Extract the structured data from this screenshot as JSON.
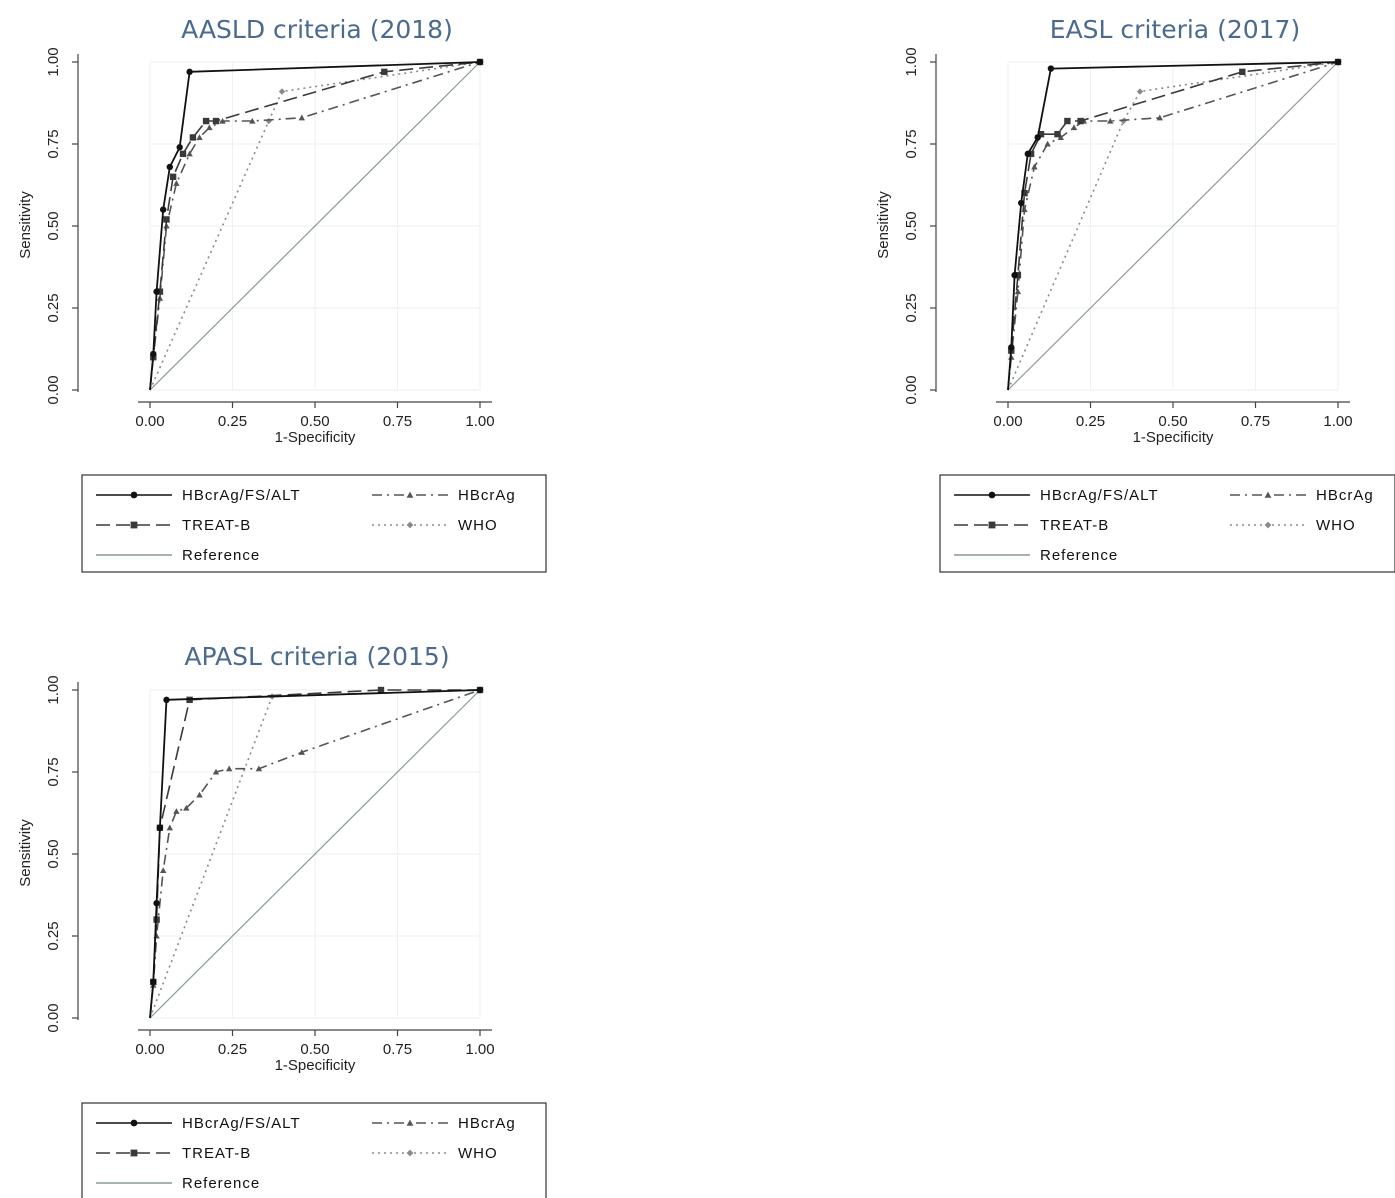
{
  "chart_data": [
    {
      "type": "line",
      "title": "AASLD criteria (2018)",
      "xlabel": "1-Specificity",
      "ylabel": "Sensitivity",
      "xlim": [
        0,
        1
      ],
      "ylim": [
        0,
        1
      ],
      "xticks": [
        "0.00",
        "0.25",
        "0.50",
        "0.75",
        "1.00"
      ],
      "yticks": [
        "0.00",
        "0.25",
        "0.50",
        "0.75",
        "1.00"
      ],
      "grid": true,
      "legend_position": "bottom",
      "series": [
        {
          "name": "HBcrAg/FS/ALT",
          "style": "solid",
          "color": "#111111",
          "x": [
            0,
            0.01,
            0.02,
            0.04,
            0.06,
            0.09,
            0.12,
            1.0
          ],
          "y": [
            0,
            0.11,
            0.3,
            0.55,
            0.68,
            0.74,
            0.97,
            1.0
          ]
        },
        {
          "name": "TREAT-B",
          "style": "dashed",
          "color": "#3a3a3a",
          "x": [
            0,
            0.01,
            0.03,
            0.05,
            0.07,
            0.1,
            0.13,
            0.17,
            0.2,
            0.71,
            1.0
          ],
          "y": [
            0,
            0.1,
            0.3,
            0.52,
            0.65,
            0.72,
            0.77,
            0.82,
            0.82,
            0.97,
            1.0
          ]
        },
        {
          "name": "HBcrAg",
          "style": "dashdot",
          "color": "#555555",
          "x": [
            0,
            0.01,
            0.03,
            0.05,
            0.08,
            0.12,
            0.15,
            0.18,
            0.22,
            0.31,
            0.46,
            1.0
          ],
          "y": [
            0,
            0.1,
            0.28,
            0.5,
            0.63,
            0.72,
            0.77,
            0.8,
            0.82,
            0.82,
            0.83,
            1.0
          ]
        },
        {
          "name": "WHO",
          "style": "dotted",
          "color": "#8a8a8a",
          "x": [
            0,
            0.36,
            0.4,
            1.0
          ],
          "y": [
            0,
            0.82,
            0.91,
            1.0
          ]
        },
        {
          "name": "Reference",
          "style": "solid",
          "color": "#8a9a9a",
          "x": [
            0,
            1
          ],
          "y": [
            0,
            1
          ]
        }
      ]
    },
    {
      "type": "line",
      "title": "EASL criteria (2017)",
      "xlabel": "1-Specificity",
      "ylabel": "Sensitivity",
      "xlim": [
        0,
        1
      ],
      "ylim": [
        0,
        1
      ],
      "xticks": [
        "0.00",
        "0.25",
        "0.50",
        "0.75",
        "1.00"
      ],
      "yticks": [
        "0.00",
        "0.25",
        "0.50",
        "0.75",
        "1.00"
      ],
      "grid": true,
      "legend_position": "bottom",
      "series": [
        {
          "name": "HBcrAg/FS/ALT",
          "style": "solid",
          "color": "#111111",
          "x": [
            0,
            0.01,
            0.02,
            0.04,
            0.06,
            0.09,
            0.13,
            1.0
          ],
          "y": [
            0,
            0.13,
            0.35,
            0.57,
            0.72,
            0.77,
            0.98,
            1.0
          ]
        },
        {
          "name": "TREAT-B",
          "style": "dashed",
          "color": "#3a3a3a",
          "x": [
            0,
            0.01,
            0.03,
            0.05,
            0.07,
            0.1,
            0.15,
            0.18,
            0.22,
            0.71,
            1.0
          ],
          "y": [
            0,
            0.12,
            0.35,
            0.6,
            0.72,
            0.78,
            0.78,
            0.82,
            0.82,
            0.97,
            1.0
          ]
        },
        {
          "name": "HBcrAg",
          "style": "dashdot",
          "color": "#555555",
          "x": [
            0,
            0.01,
            0.03,
            0.05,
            0.08,
            0.12,
            0.16,
            0.2,
            0.23,
            0.31,
            0.46,
            1.0
          ],
          "y": [
            0,
            0.1,
            0.3,
            0.55,
            0.68,
            0.75,
            0.77,
            0.8,
            0.82,
            0.82,
            0.83,
            1.0
          ]
        },
        {
          "name": "WHO",
          "style": "dotted",
          "color": "#8a8a8a",
          "x": [
            0,
            0.35,
            0.4,
            1.0
          ],
          "y": [
            0,
            0.82,
            0.91,
            1.0
          ]
        },
        {
          "name": "Reference",
          "style": "solid",
          "color": "#8a9a9a",
          "x": [
            0,
            1
          ],
          "y": [
            0,
            1
          ]
        }
      ]
    },
    {
      "type": "line",
      "title": "APASL criteria (2015)",
      "xlabel": "1-Specificity",
      "ylabel": "Sensitivity",
      "xlim": [
        0,
        1
      ],
      "ylim": [
        0,
        1
      ],
      "xticks": [
        "0.00",
        "0.25",
        "0.50",
        "0.75",
        "1.00"
      ],
      "yticks": [
        "0.00",
        "0.25",
        "0.50",
        "0.75",
        "1.00"
      ],
      "grid": true,
      "legend_position": "bottom",
      "series": [
        {
          "name": "HBcrAg/FS/ALT",
          "style": "solid",
          "color": "#111111",
          "x": [
            0,
            0.01,
            0.02,
            0.03,
            0.05,
            1.0
          ],
          "y": [
            0,
            0.11,
            0.35,
            0.58,
            0.97,
            1.0
          ]
        },
        {
          "name": "TREAT-B",
          "style": "dashed",
          "color": "#3a3a3a",
          "x": [
            0,
            0.01,
            0.02,
            0.03,
            0.12,
            0.7,
            1.0
          ],
          "y": [
            0,
            0.11,
            0.3,
            0.58,
            0.97,
            1.0,
            1.0
          ]
        },
        {
          "name": "HBcrAg",
          "style": "dashdot",
          "color": "#555555",
          "x": [
            0,
            0.01,
            0.02,
            0.04,
            0.06,
            0.08,
            0.11,
            0.15,
            0.2,
            0.24,
            0.33,
            0.46,
            1.0
          ],
          "y": [
            0,
            0.1,
            0.25,
            0.45,
            0.58,
            0.63,
            0.64,
            0.68,
            0.75,
            0.76,
            0.76,
            0.81,
            1.0
          ]
        },
        {
          "name": "WHO",
          "style": "dotted",
          "color": "#8a8a8a",
          "x": [
            0,
            0.37,
            1.0
          ],
          "y": [
            0,
            0.98,
            1.0
          ]
        },
        {
          "name": "Reference",
          "style": "solid",
          "color": "#8a9a9a",
          "x": [
            0,
            1
          ],
          "y": [
            0,
            1
          ]
        }
      ]
    }
  ]
}
